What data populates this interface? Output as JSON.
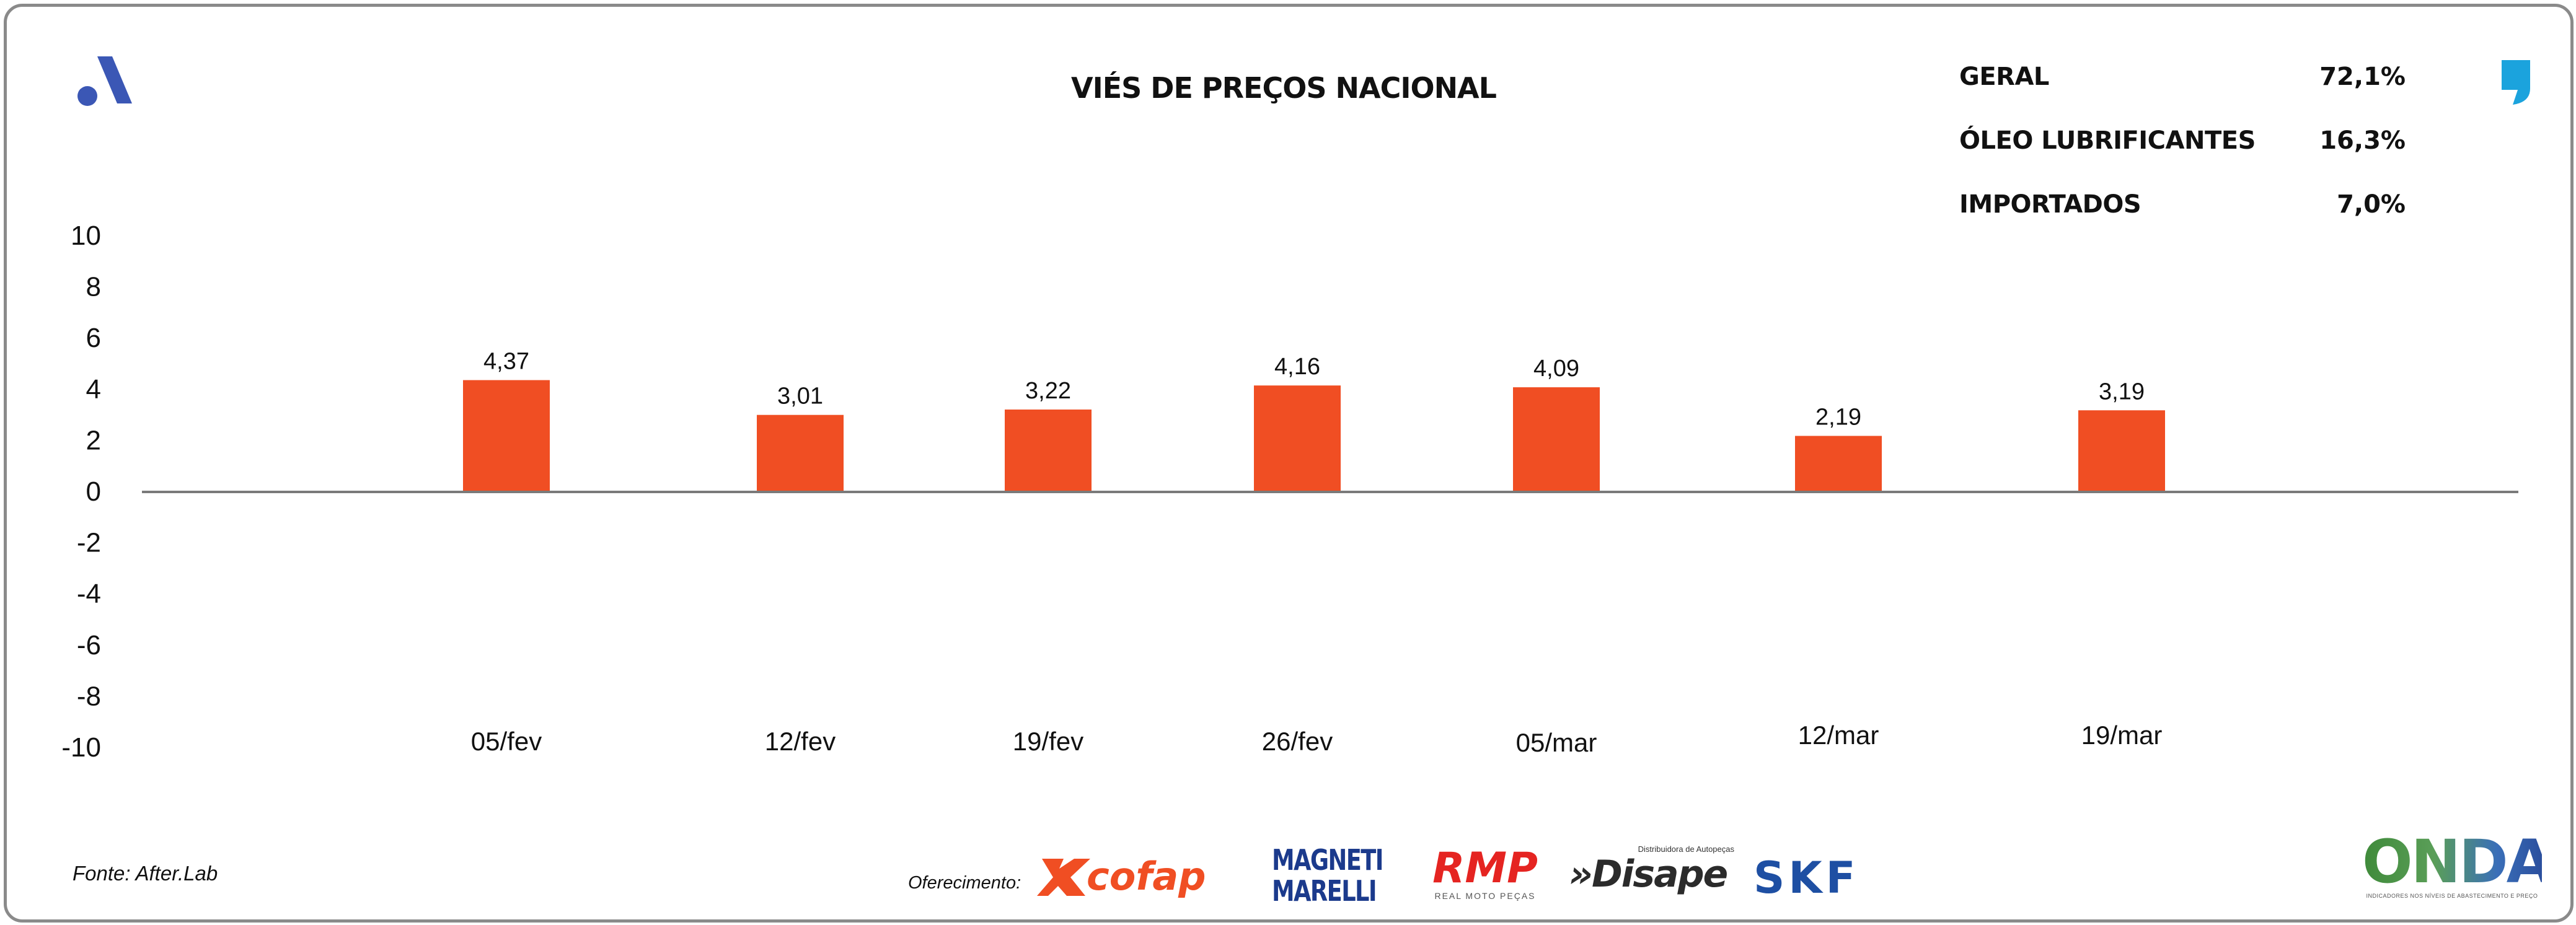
{
  "header": {
    "title": "VIÉS DE PREÇOS NACIONAL"
  },
  "stats": [
    {
      "label": "GERAL",
      "value": "72,1%"
    },
    {
      "label": "ÓLEO LUBRIFICANTES",
      "value": "16,3%"
    },
    {
      "label": "IMPORTADOS",
      "value": "7,0%"
    }
  ],
  "footer": {
    "source": "Fonte: After.Lab",
    "sponsor_label": "Oferecimento:",
    "sponsors": {
      "cofap": "cofap",
      "magneti_line1": "MAGNETI",
      "magneti_line2": "MARELLI",
      "rmp": "RMP",
      "rmp_sub": "REAL MOTO PEÇAS",
      "disape": "»Disape",
      "disape_sub": "Distribuidora de Autopeças",
      "skf": "SKF"
    },
    "onda": "ONDA",
    "onda_sub": "INDICADORES NOS NÍVEIS DE ABASTECIMENTO E PREÇO"
  },
  "colors": {
    "bar": "#f04e23",
    "axis": "#7a7a7a",
    "logo_blue": "#3b57b5",
    "quote_blue": "#1ba3dd",
    "text": "#111111"
  },
  "icons": {
    "brand_logo": "after-logo-icon",
    "quote": "quote-icon"
  },
  "chart_data": {
    "type": "bar",
    "categories": [
      "05/fev",
      "12/fev",
      "19/fev",
      "26/fev",
      "05/mar",
      "12/mar",
      "19/mar"
    ],
    "series": [
      {
        "values": [
          4.37,
          3.01,
          3.22,
          4.16,
          4.09,
          2.19,
          3.19
        ]
      }
    ],
    "data_labels": [
      "4,37",
      "3,01",
      "3,22",
      "4,16",
      "4,09",
      "2,19",
      "3,19"
    ],
    "title": "VIÉS DE PREÇOS NACIONAL",
    "xlabel": "",
    "ylabel": "",
    "ylim": [
      -10,
      10
    ],
    "yticks": [
      10,
      8,
      6,
      4,
      2,
      0,
      -2,
      -4,
      -6,
      -8,
      -10
    ],
    "ytick_labels": [
      "10",
      "8",
      "6",
      "4",
      "2",
      "0",
      "-2",
      "-4",
      "-6",
      "-8",
      "-10"
    ],
    "grid": false,
    "legend": "none"
  }
}
